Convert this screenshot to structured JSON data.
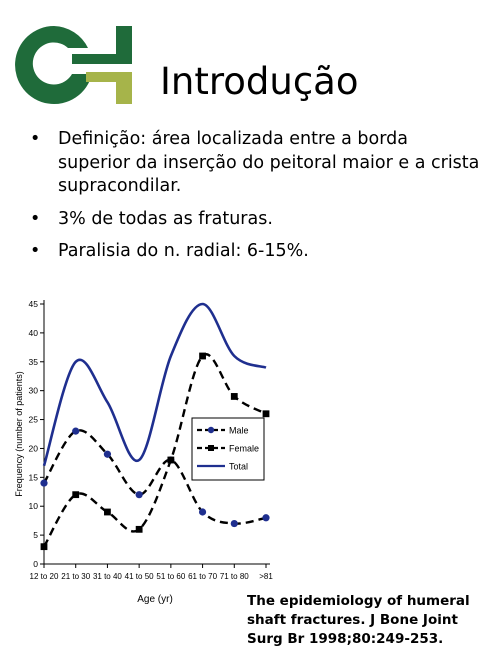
{
  "slide": {
    "title": "Introdução",
    "bullet_glyph": "•",
    "bullets": [
      "Definição: área localizada entre a borda superior da inserção do peitoral maior e a crista supracondilar.",
      "3% de todas as fraturas.",
      "Paralisia do n. radial: 6-15%."
    ],
    "reference": "The epidemiology of humeral shaft fractures. J Bone Joint Surg Br 1998;80:249-253.",
    "logo_icon": "ci-logo-icon",
    "colors": {
      "logo_green": "#1f6b3a",
      "logo_olive": "#a6b44a",
      "series_blue": "#1f2f8f"
    }
  },
  "chart_data": {
    "type": "line",
    "xlabel": "Age (yr)",
    "ylabel": "Frequency (number of patients)",
    "ylim": [
      0,
      45
    ],
    "yticks": [
      0,
      5,
      10,
      15,
      20,
      25,
      30,
      35,
      40,
      45
    ],
    "categories": [
      "12 to 20",
      "21 to 30",
      "31 to 40",
      "41 to 50",
      "51 to 60",
      "61 to 70",
      "71 to 80",
      ">81"
    ],
    "series": [
      {
        "name": "Male",
        "values": [
          14,
          23,
          19,
          12,
          18,
          9,
          7,
          8
        ],
        "style": "dashed",
        "marker": "circle"
      },
      {
        "name": "Female",
        "values": [
          3,
          12,
          9,
          6,
          18,
          36,
          29,
          26
        ],
        "style": "dashed",
        "marker": "square"
      },
      {
        "name": "Total",
        "values": [
          17,
          35,
          28,
          18,
          36,
          45,
          36,
          34
        ],
        "style": "solid",
        "marker": "none"
      }
    ],
    "legend_position": "center-right",
    "grid": false
  }
}
